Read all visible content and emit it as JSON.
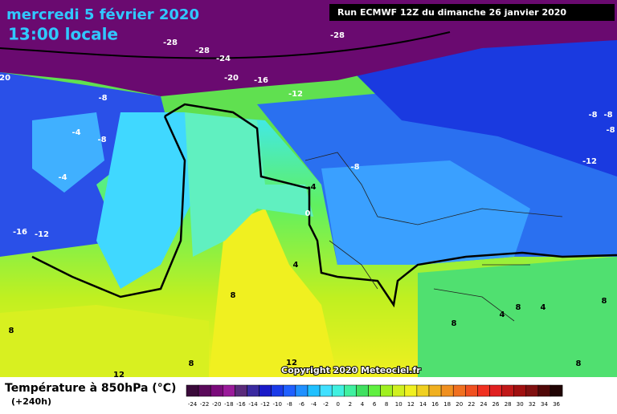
{
  "header": {
    "date": "mercredi 5 février 2020",
    "time": "13:00 locale",
    "run": "Run ECMWF 12Z du dimanche 26 janvier 2020"
  },
  "map": {
    "contour_labels": [
      -28,
      -28,
      -28,
      -24,
      -20,
      -20,
      -16,
      -12,
      -8,
      -8,
      -4,
      -4,
      -16,
      -12,
      -8,
      -4,
      0,
      4,
      8,
      8,
      8,
      8,
      4,
      4,
      8,
      8,
      8,
      12,
      12,
      -8,
      -8,
      -8,
      -12
    ],
    "copyright": "Copyright 2020 Meteociel.fr"
  },
  "legend": {
    "title": "Température à 850hPa (°C)",
    "subtitle": "(+240h)",
    "values": [
      -24,
      -22,
      -20,
      -18,
      -16,
      -14,
      -12,
      -10,
      -8,
      -6,
      -4,
      -2,
      0,
      2,
      4,
      6,
      8,
      10,
      12,
      14,
      16,
      18,
      20,
      22,
      24,
      26,
      28,
      30,
      32,
      34,
      36
    ],
    "colors": [
      "#3a0a3a",
      "#5a0a5a",
      "#7a0a7a",
      "#9a1a9a",
      "#5a2a7a",
      "#3a2aa0",
      "#1a1ac8",
      "#1a3ae8",
      "#2060ff",
      "#2090ff",
      "#20c0ff",
      "#40e0ff",
      "#40f0e0",
      "#40f0a0",
      "#40e060",
      "#60f040",
      "#a0f020",
      "#d0f020",
      "#f0f020",
      "#f0d020",
      "#f0b020",
      "#f09020",
      "#f07020",
      "#f05020",
      "#f03020",
      "#e02020",
      "#c01818",
      "#a01010",
      "#801010",
      "#500808",
      "#200404"
    ]
  }
}
